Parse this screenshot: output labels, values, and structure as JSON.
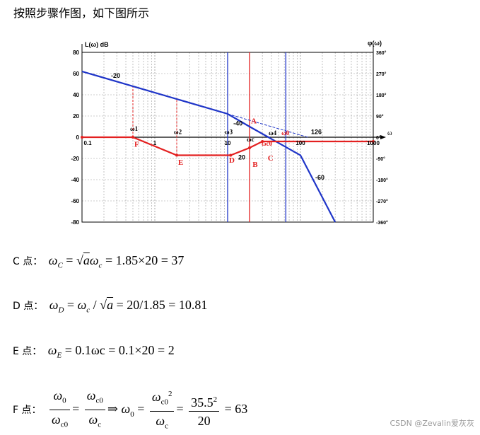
{
  "heading": "按照步骤作图，如下图所示",
  "chart_data": {
    "type": "line",
    "left_axis_label": "L(ω)  dB",
    "right_axis_label": "φ(ω)",
    "omega_symbol": "ω",
    "left_ticks": [
      "80",
      "60",
      "40",
      "20",
      "0",
      "-20",
      "-40",
      "-60",
      "-80"
    ],
    "right_ticks": [
      "360°",
      "270°",
      "180°",
      "90°",
      "0°",
      "-90°",
      "-180°",
      "-270°",
      "-360°"
    ],
    "x_ticks": [
      "0.1",
      "1",
      "10",
      "100",
      "1000"
    ],
    "xlim": [
      0.1,
      1000
    ],
    "ylim": [
      -80,
      80
    ],
    "scale": "log",
    "series": [
      {
        "color": "#1f35c8",
        "points": [
          [
            0.1,
            62
          ],
          [
            10,
            22
          ],
          [
            20,
            10
          ],
          [
            100,
            -17
          ],
          [
            300,
            -80
          ]
        ]
      },
      {
        "color": "#e32020",
        "points": [
          [
            0.1,
            0
          ],
          [
            0.5,
            0
          ],
          [
            2,
            -17
          ],
          [
            11,
            -17
          ],
          [
            20,
            -10
          ],
          [
            30,
            -4
          ],
          [
            1000,
            -4
          ]
        ]
      }
    ],
    "slopes": [
      "-20",
      "-40",
      "-60",
      "20",
      "126"
    ],
    "points": [
      {
        "label": "A",
        "color": "#e32020"
      },
      {
        "label": "B",
        "color": "#e32020"
      },
      {
        "label": "C",
        "color": "#e32020"
      },
      {
        "label": "D",
        "color": "#e32020"
      },
      {
        "label": "E",
        "color": "#e32020"
      },
      {
        "label": "F",
        "color": "#e32020"
      }
    ],
    "freq_labels": [
      "ω1",
      "ω2",
      "ω3",
      "ωc",
      "ω4",
      "ωc0",
      "ω0"
    ]
  },
  "formulas": {
    "c": {
      "label": "C 点：",
      "text": "= 1.85×20 = 37"
    },
    "d": {
      "label": "D 点：",
      "text": "= 20/1.85 = 10.81"
    },
    "e": {
      "label": "E 点：",
      "text": "= 0.1ωc = 0.1×20 = 2"
    },
    "f": {
      "label": "F 点：",
      "num1": "35.5",
      "den1": "20",
      "result": "= 63"
    }
  },
  "watermark": "CSDN @Zevalin爱灰灰"
}
